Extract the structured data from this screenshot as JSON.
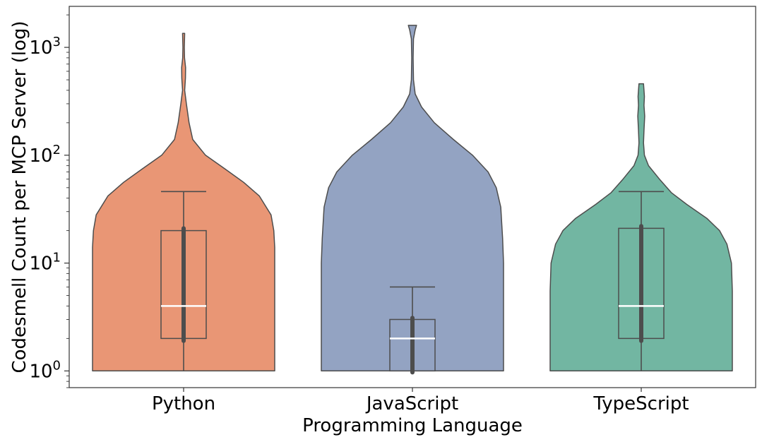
{
  "chart_data": {
    "type": "violin",
    "title": "",
    "xlabel": "Programming Language",
    "ylabel": "Codesmell Count per MCP Server (log)",
    "y_scale": "log",
    "ylim": [
      0.7,
      2400
    ],
    "y_ticks": [
      {
        "value": 1,
        "mantissa": "10",
        "exponent": "0"
      },
      {
        "value": 10,
        "mantissa": "10",
        "exponent": "1"
      },
      {
        "value": 100,
        "mantissa": "10",
        "exponent": "2"
      },
      {
        "value": 1000,
        "mantissa": "10",
        "exponent": "3"
      }
    ],
    "grid": false,
    "legend": "none",
    "categories": [
      "Python",
      "JavaScript",
      "TypeScript"
    ],
    "series": [
      {
        "category": "Python",
        "color": "#e99675",
        "violin_profile": [
          {
            "y": 1,
            "w": 1.0
          },
          {
            "y": 14,
            "w": 1.0
          },
          {
            "y": 20,
            "w": 0.99
          },
          {
            "y": 28,
            "w": 0.96
          },
          {
            "y": 42,
            "w": 0.83
          },
          {
            "y": 56,
            "w": 0.66
          },
          {
            "y": 75,
            "w": 0.45
          },
          {
            "y": 100,
            "w": 0.24
          },
          {
            "y": 140,
            "w": 0.1
          },
          {
            "y": 200,
            "w": 0.06
          },
          {
            "y": 300,
            "w": 0.03
          },
          {
            "y": 400,
            "w": 0.012
          },
          {
            "y": 520,
            "w": 0.02
          },
          {
            "y": 650,
            "w": 0.022
          },
          {
            "y": 800,
            "w": 0.01
          },
          {
            "y": 1000,
            "w": 0.008
          },
          {
            "y": 1350,
            "w": 0.012
          }
        ],
        "box": {
          "whisker_low": 1,
          "q1": 2,
          "median": 4,
          "q3": 20,
          "whisker_high": 46
        },
        "inner_box": {
          "low": 1.9,
          "high": 21
        }
      },
      {
        "category": "JavaScript",
        "color": "#93a3c2",
        "violin_profile": [
          {
            "y": 1,
            "w": 1.0
          },
          {
            "y": 10,
            "w": 1.0
          },
          {
            "y": 17,
            "w": 0.99
          },
          {
            "y": 33,
            "w": 0.97
          },
          {
            "y": 50,
            "w": 0.92
          },
          {
            "y": 70,
            "w": 0.83
          },
          {
            "y": 100,
            "w": 0.66
          },
          {
            "y": 140,
            "w": 0.45
          },
          {
            "y": 200,
            "w": 0.24
          },
          {
            "y": 280,
            "w": 0.1
          },
          {
            "y": 370,
            "w": 0.03
          },
          {
            "y": 500,
            "w": 0.012
          },
          {
            "y": 800,
            "w": 0.008
          },
          {
            "y": 1200,
            "w": 0.012
          },
          {
            "y": 1450,
            "w": 0.03
          },
          {
            "y": 1600,
            "w": 0.045
          }
        ],
        "box": {
          "whisker_low": 1,
          "q1": 1,
          "median": 2,
          "q3": 3,
          "whisker_high": 6
        },
        "inner_box": {
          "low": 0.97,
          "high": 3.1
        }
      },
      {
        "category": "TypeScript",
        "color": "#72b6a2",
        "violin_profile": [
          {
            "y": 1,
            "w": 1.0
          },
          {
            "y": 5.5,
            "w": 1.0
          },
          {
            "y": 10,
            "w": 0.99
          },
          {
            "y": 15,
            "w": 0.94
          },
          {
            "y": 20,
            "w": 0.86
          },
          {
            "y": 26,
            "w": 0.72
          },
          {
            "y": 35,
            "w": 0.5
          },
          {
            "y": 45,
            "w": 0.33
          },
          {
            "y": 60,
            "w": 0.2
          },
          {
            "y": 80,
            "w": 0.08
          },
          {
            "y": 100,
            "w": 0.035
          },
          {
            "y": 130,
            "w": 0.025
          },
          {
            "y": 170,
            "w": 0.03
          },
          {
            "y": 230,
            "w": 0.038
          },
          {
            "y": 290,
            "w": 0.03
          },
          {
            "y": 350,
            "w": 0.035
          },
          {
            "y": 400,
            "w": 0.03
          },
          {
            "y": 460,
            "w": 0.025
          }
        ],
        "box": {
          "whisker_low": 1,
          "q1": 2,
          "median": 4,
          "q3": 21,
          "whisker_high": 46
        },
        "inner_box": {
          "low": 1.9,
          "high": 22
        }
      }
    ],
    "colors": {
      "edge": "#4d4d4d",
      "median": "#ffffff",
      "axis": "#333333"
    }
  }
}
